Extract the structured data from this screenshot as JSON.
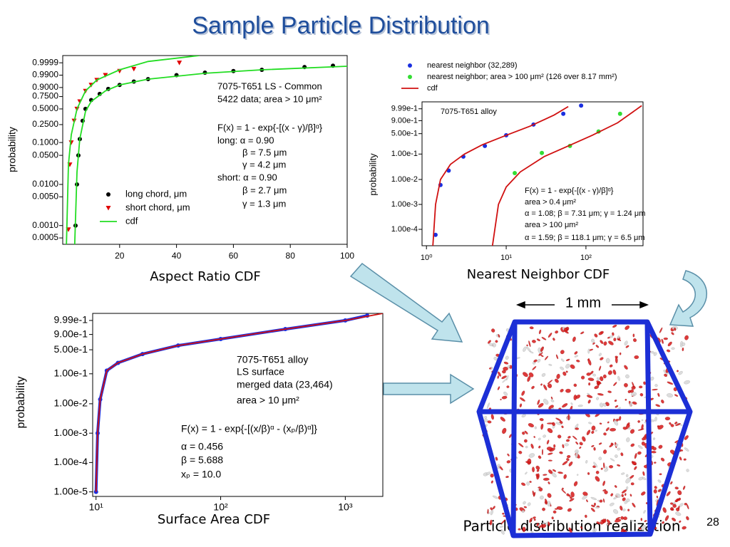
{
  "slide": {
    "title": "Sample Particle Distribution",
    "captions": [
      "Aspect Ratio CDF",
      "Nearest Neighbor CDF",
      "Surface Area CDF",
      "Particle distribution realization"
    ],
    "page_number": "28",
    "scale_label": "1 mm"
  },
  "chart_data": [
    {
      "type": "scatter",
      "ylabel": "probability",
      "xscale": "linear",
      "yscale": "weibull",
      "legend": "lower center",
      "xlim": [
        0,
        100
      ],
      "xticks": [
        20,
        40,
        60,
        80,
        100
      ],
      "ylim": [
        0.00035,
        0.999999
      ],
      "yticks": [
        0.9999,
        {
          "value": 0.99,
          "label": "0.9900"
        },
        {
          "value": 0.9,
          "label": "0.9000"
        },
        {
          "value": 0.75,
          "label": "0.7500"
        },
        {
          "value": 0.5,
          "label": "0.5000"
        },
        {
          "value": 0.25,
          "label": "0.2500"
        },
        {
          "value": 0.1,
          "label": "0.1000"
        },
        {
          "value": 0.05,
          "label": "0.0500"
        },
        {
          "value": 0.01,
          "label": "0.0100"
        },
        {
          "value": 0.005,
          "label": "0.0050"
        },
        {
          "value": 0.001,
          "label": "0.0010"
        },
        0.0005
      ],
      "annotations": [
        "7075-T651 LS - Common",
        "5422 data; area > 10 μm²",
        "F(x) = 1 - exp{-[(x - γ)/β]ᵅ}",
        "long: α = 0.90",
        "β = 7.5 μm",
        "γ = 4.2 μm",
        "short: α = 0.90",
        "β = 2.7 μm",
        "γ = 1.3 μm"
      ],
      "series": [
        {
          "name": "long chord, μm",
          "color": "#000000",
          "marker": "circle",
          "x": [
            4.5,
            5,
            5.5,
            6,
            7,
            8,
            10,
            13,
            16,
            20,
            25,
            30,
            40,
            50,
            60,
            70,
            85,
            95
          ],
          "values": [
            0.001,
            0.01,
            0.05,
            0.12,
            0.3,
            0.5,
            0.68,
            0.8,
            0.88,
            0.93,
            0.96,
            0.975,
            0.99,
            0.995,
            0.997,
            0.998,
            0.9993,
            0.9996
          ]
        },
        {
          "name": "short chord, μm",
          "color": "#e00000",
          "marker": "triangle",
          "x": [
            2,
            2.5,
            3,
            4,
            5,
            6,
            8,
            10,
            12,
            15,
            20,
            25,
            41
          ],
          "values": [
            0.0008,
            0.03,
            0.1,
            0.3,
            0.5,
            0.65,
            0.85,
            0.93,
            0.97,
            0.99,
            0.997,
            0.9985,
            0.9999
          ]
        },
        {
          "name": "cdf",
          "color": "#22dd22",
          "marker": "line",
          "x": [
            4.2,
            5,
            6,
            8,
            10,
            15,
            20,
            30,
            50,
            70,
            100,
            null,
            1.3,
            2,
            3,
            5,
            8,
            12,
            20,
            30,
            48
          ],
          "values": [
            0.00035,
            0.02,
            0.12,
            0.45,
            0.65,
            0.85,
            0.93,
            0.975,
            0.994,
            0.998,
            0.9995,
            null,
            0.00035,
            0.03,
            0.15,
            0.5,
            0.85,
            0.97,
            0.998,
            0.99995,
            0.999999
          ]
        }
      ]
    },
    {
      "type": "scatter",
      "ylabel": "probability",
      "xscale": "log",
      "yscale": "weibull",
      "legend": "above",
      "xlim": [
        0.88,
        520
      ],
      "xticks": [
        {
          "value": 1,
          "label": "10⁰"
        },
        {
          "value": 10,
          "label": "10¹"
        },
        {
          "value": 100,
          "label": "10²"
        }
      ],
      "ylim": [
        2.2e-05,
        0.999998
      ],
      "yticks": [
        {
          "value": 0.999,
          "label": "9.99e-1"
        },
        {
          "value": 0.9,
          "label": "9.00e-1"
        },
        {
          "value": 0.5,
          "label": "5.00e-1"
        },
        {
          "value": 0.1,
          "label": "1.00e-1"
        },
        {
          "value": 0.01,
          "label": "1.00e-2"
        },
        {
          "value": 0.001,
          "label": "1.00e-3"
        },
        {
          "value": 0.0001,
          "label": "1.00e-4"
        }
      ],
      "annotations": [
        "7075-T651 alloy",
        "F(x) = 1 - exp{-[(x - γ)/β]ᵅ}",
        "area > 0.4 μm²",
        "α = 1.08; β = 7.31 μm; γ = 1.24 μm",
        "area > 100 μm²",
        "α = 1.59; β = 118.1 μm; γ = 6.5 μm"
      ],
      "series": [
        {
          "name": "nearest neighbor (32,289)",
          "color": "#1a2fe0",
          "marker": "circle",
          "x": [
            1.3,
            1.5,
            1.9,
            2.9,
            5.4,
            10,
            22,
            52,
            87
          ],
          "values": [
            6e-05,
            0.006,
            0.0226,
            0.08,
            0.2,
            0.45,
            0.8,
            0.987,
            0.99991
          ]
        },
        {
          "name": "nearest neighbor; area > 100 μm² (126 over 8.17 mm²)",
          "color": "#33dd33",
          "marker": "circle",
          "x": [
            12.8,
            28,
            63,
            144,
            268
          ],
          "values": [
            0.018,
            0.11,
            0.2,
            0.57,
            0.987
          ]
        },
        {
          "name": "cdf",
          "color": "#d01010",
          "marker": "line",
          "x": [
            1.2,
            1.3,
            1.5,
            2,
            3,
            5,
            10,
            20,
            40,
            60,
            null,
            6.7,
            8,
            10,
            15,
            30,
            60,
            120,
            250,
            500
          ],
          "values": [
            2e-05,
            0.001,
            0.01,
            0.04,
            0.1,
            0.22,
            0.45,
            0.75,
            0.98,
            0.9998,
            null,
            2e-05,
            0.001,
            0.005,
            0.02,
            0.08,
            0.2,
            0.45,
            0.85,
            0.9999
          ]
        }
      ]
    },
    {
      "type": "scatter",
      "ylabel": "probability",
      "xscale": "log",
      "yscale": "weibull",
      "xlim": [
        9.4,
        2000
      ],
      "xticks": [
        {
          "value": 10,
          "label": "10¹"
        },
        {
          "value": 100,
          "label": "10²"
        },
        {
          "value": 1000,
          "label": "10³"
        }
      ],
      "ylim": [
        7e-06,
        0.999994
      ],
      "yticks": [
        {
          "value": 0.999,
          "label": "9.99e-1"
        },
        {
          "value": 0.9,
          "label": "9.00e-1"
        },
        {
          "value": 0.5,
          "label": "5.00e-1"
        },
        {
          "value": 0.1,
          "label": "1.00e-1"
        },
        {
          "value": 0.01,
          "label": "1.00e-2"
        },
        {
          "value": 0.001,
          "label": "1.00e-3"
        },
        {
          "value": 0.0001,
          "label": "1.00e-4"
        },
        {
          "value": 1e-05,
          "label": "1.00e-5"
        }
      ],
      "annotations": [
        "7075-T651 alloy",
        "LS surface",
        "merged data (23,464)",
        "area > 10 μm²",
        "F(x) = 1 - exp{-[(x/β)ᵅ - (xₚ/β)ᵅ]}",
        "α = 0.456",
        "β = 5.688",
        "xₚ = 10.0"
      ],
      "series": [
        {
          "color": "#1a2fe0",
          "marker": "circle-line",
          "x": [
            10,
            10.3,
            10.8,
            12.2,
            15,
            23.6,
            45.6,
            100,
            330,
            1000,
            1500
          ],
          "values": [
            1e-05,
            0.001,
            0.014,
            0.126,
            0.22,
            0.39,
            0.62,
            0.8,
            0.97,
            0.999,
            0.99996
          ]
        },
        {
          "color": "#d01010",
          "marker": "line",
          "x": [
            10,
            10.3,
            10.8,
            12.2,
            15,
            23.6,
            45.6,
            100,
            330,
            1000,
            2000
          ],
          "values": [
            1e-05,
            0.001,
            0.014,
            0.126,
            0.22,
            0.39,
            0.62,
            0.8,
            0.97,
            0.999,
            0.999994
          ]
        }
      ]
    }
  ]
}
